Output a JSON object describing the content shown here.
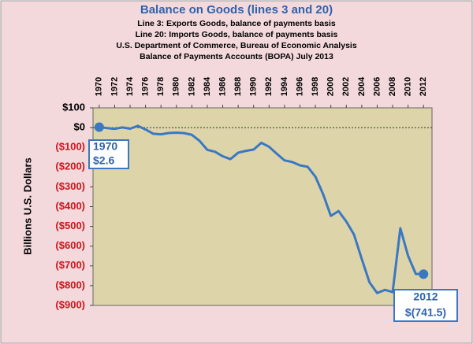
{
  "chart_data": {
    "type": "line",
    "title": "Balance on Goods (lines 3 and 20)",
    "subtitle": [
      "Line 3:  Exports Goods, balance of payments basis",
      "Line 20: Imports Goods, balance of payments basis",
      "U.S. Department of Commerce, Bureau of Economic Analysis",
      "Balance of Payments Accounts (BOPA) July 2013"
    ],
    "y_label": "Billions U.S. Dollars",
    "x": [
      1970,
      1971,
      1972,
      1973,
      1974,
      1975,
      1976,
      1977,
      1978,
      1979,
      1980,
      1981,
      1982,
      1983,
      1984,
      1985,
      1986,
      1987,
      1988,
      1989,
      1990,
      1991,
      1992,
      1993,
      1994,
      1995,
      1996,
      1997,
      1998,
      1999,
      2000,
      2001,
      2002,
      2003,
      2004,
      2005,
      2006,
      2007,
      2008,
      2009,
      2010,
      2011,
      2012
    ],
    "series": [
      {
        "color": "#3a78c2",
        "values": [
          2.6,
          -2.3,
          -6.4,
          0.9,
          -5.5,
          8.9,
          -9.5,
          -31.1,
          -33.9,
          -27.6,
          -25.5,
          -28.0,
          -36.5,
          -67.1,
          -112.5,
          -122.2,
          -145.1,
          -159.6,
          -126.9,
          -117.7,
          -111.0,
          -76.9,
          -96.9,
          -132.5,
          -165.8,
          -174.2,
          -191.0,
          -198.4,
          -248.2,
          -337.1,
          -446.8,
          -422.4,
          -475.2,
          -541.6,
          -664.8,
          -782.8,
          -837.3,
          -821.2,
          -832.5,
          -509.7,
          -648.7,
          -740.6,
          -741.5
        ]
      }
    ],
    "xlim": [
      1969.2,
      2013.1
    ],
    "xticks": [
      1970,
      1972,
      1974,
      1976,
      1978,
      1980,
      1982,
      1984,
      1986,
      1988,
      1990,
      1992,
      1994,
      1996,
      1998,
      2000,
      2002,
      2004,
      2006,
      2008,
      2010,
      2012
    ],
    "ylim": [
      -900,
      100
    ],
    "yticks": [
      {
        "value": 100,
        "label": "$100"
      },
      {
        "value": 0,
        "label": "$0"
      },
      {
        "value": -100,
        "label": "($100)"
      },
      {
        "value": -200,
        "label": "($200)"
      },
      {
        "value": -300,
        "label": "($300)"
      },
      {
        "value": -400,
        "label": "($400)"
      },
      {
        "value": -500,
        "label": "($500)"
      },
      {
        "value": -600,
        "label": "($600)"
      },
      {
        "value": -700,
        "label": "($700)"
      },
      {
        "value": -800,
        "label": "($800)"
      },
      {
        "value": -900,
        "label": "($900)"
      }
    ],
    "annotations": [
      {
        "lines": [
          "1970",
          "$2.6"
        ]
      },
      {
        "lines": [
          "2012",
          "$(741.5)"
        ]
      }
    ]
  }
}
